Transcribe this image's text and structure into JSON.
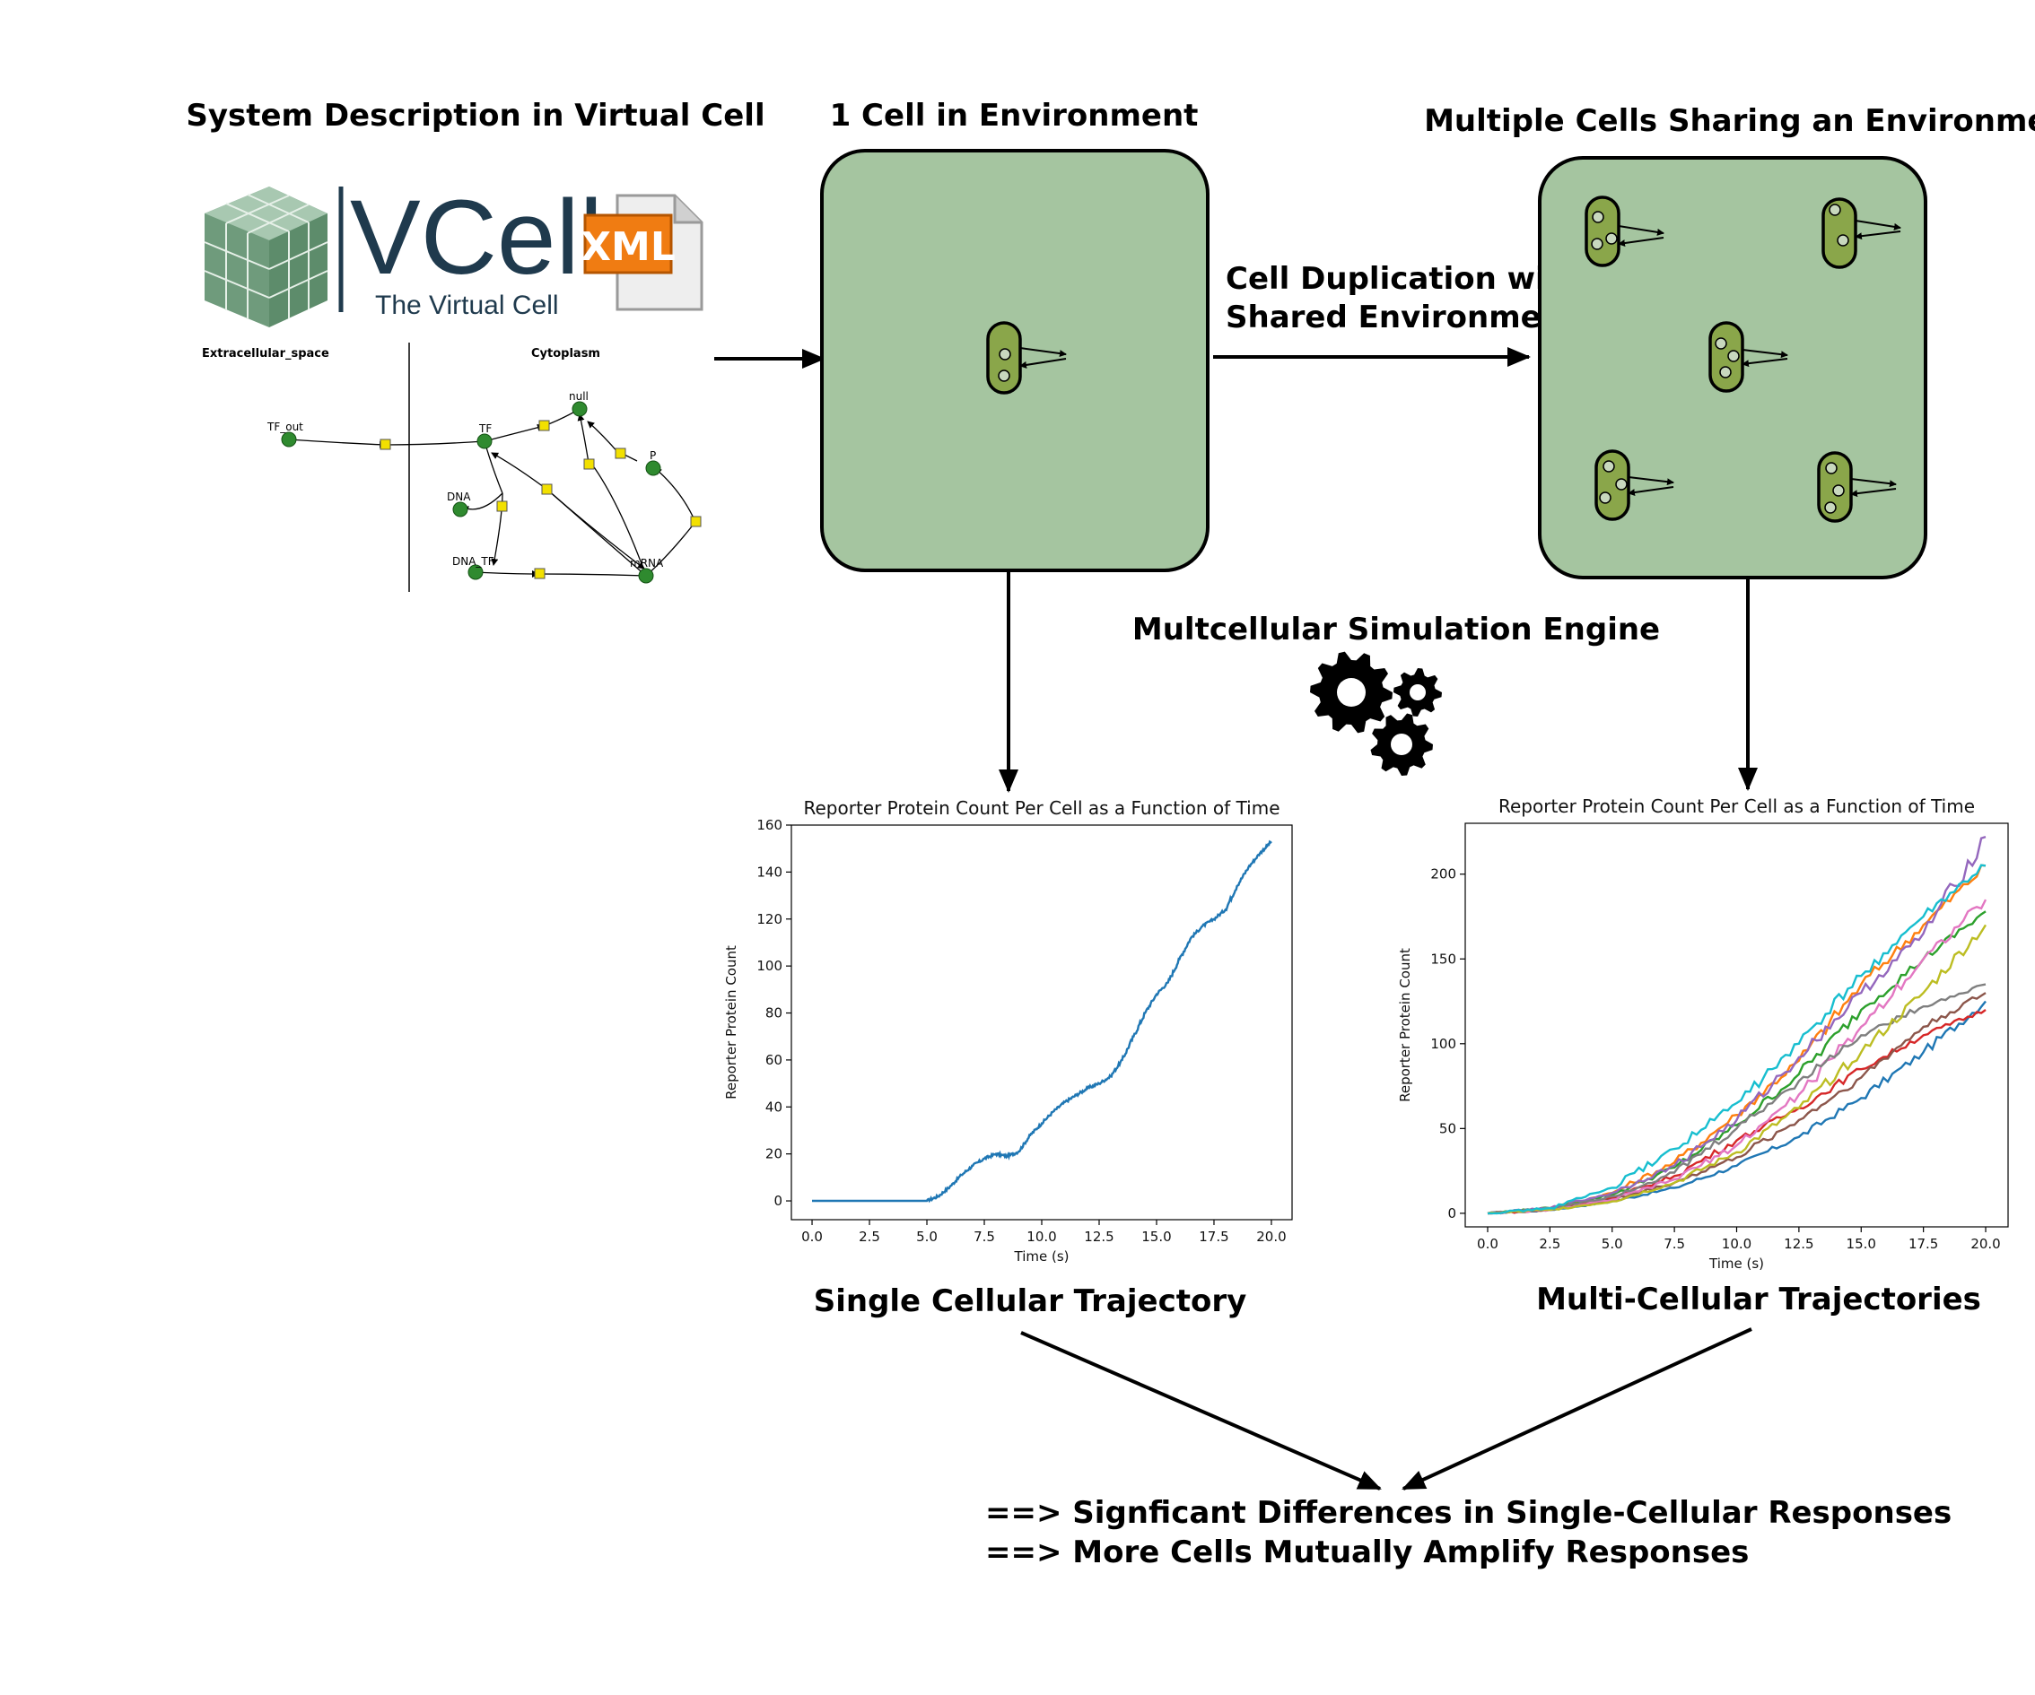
{
  "titles": {
    "system": "System Description in Virtual Cell",
    "one_cell": "1 Cell in Environment",
    "multi_cells": "Multiple Cells Sharing an Environment"
  },
  "logo": {
    "name": "VCell",
    "tagline": "The Virtual Cell",
    "file_badge": "XML"
  },
  "network": {
    "compartments": [
      "Extracellular_space",
      "Cytoplasm"
    ],
    "species": [
      "TF_out",
      "TF",
      "null",
      "P",
      "DNA",
      "DNA_TF",
      "mRNA"
    ]
  },
  "duplication_label": [
    "Cell Duplication with",
    "Shared Environment"
  ],
  "engine_label": "Multcellular Simulation Engine",
  "icons": [
    "vcell-cube-logo-icon",
    "xml-file-icon",
    "gears-icon"
  ],
  "colors": {
    "environment_fill": "#a5c5a0",
    "cell_fill": "#8aa64a",
    "node_green": "#2f8a2f",
    "reaction_yellow": "#f2e000"
  },
  "chart_data": [
    {
      "type": "line",
      "title": "Reporter Protein Count Per Cell as a Function of Time",
      "xlabel": "Time (s)",
      "ylabel": "Reporter Protein Count",
      "xlim": [
        -0.9,
        20.9
      ],
      "ylim": [
        -8,
        160
      ],
      "x_ticks": [
        "0.0",
        "2.5",
        "5.0",
        "7.5",
        "10.0",
        "12.5",
        "15.0",
        "17.5",
        "20.0"
      ],
      "y_ticks": [
        "0",
        "20",
        "40",
        "60",
        "80",
        "100",
        "120",
        "140",
        "160"
      ],
      "series": [
        {
          "color": "#1f77b4",
          "x": [
            0,
            5.0,
            5.5,
            6.0,
            6.5,
            7.0,
            7.5,
            8.0,
            8.5,
            9.0,
            9.5,
            10.0,
            10.5,
            11.0,
            11.5,
            12.0,
            12.5,
            13.0,
            13.5,
            14.0,
            14.5,
            15.0,
            15.5,
            16.0,
            16.5,
            17.0,
            17.5,
            18.0,
            18.5,
            19.0,
            19.5,
            20.0
          ],
          "y": [
            0,
            0,
            2,
            6,
            11,
            15,
            18,
            20,
            19,
            21,
            28,
            33,
            38,
            42,
            45,
            48,
            50,
            53,
            60,
            70,
            80,
            88,
            93,
            103,
            112,
            117,
            120,
            124,
            134,
            142,
            148,
            153
          ]
        }
      ],
      "caption": "Single Cellular Trajectory"
    },
    {
      "type": "line",
      "title": "Reporter Protein Count Per Cell as a Function of Time",
      "xlabel": "Time (s)",
      "ylabel": "Reporter Protein Count",
      "xlim": [
        -0.9,
        20.9
      ],
      "ylim": [
        -8,
        230
      ],
      "x_ticks": [
        "0.0",
        "2.5",
        "5.0",
        "7.5",
        "10.0",
        "12.5",
        "15.0",
        "17.5",
        "20.0"
      ],
      "y_ticks": [
        "0",
        "50",
        "100",
        "150",
        "200"
      ],
      "x": [
        0,
        2.5,
        5.0,
        7.5,
        10.0,
        12.5,
        15.0,
        17.5,
        20.0
      ],
      "series": [
        {
          "color": "#1f77b4",
          "y": [
            0,
            2,
            7,
            15,
            28,
            45,
            68,
            95,
            125
          ]
        },
        {
          "color": "#ff7f0e",
          "y": [
            0,
            3,
            12,
            30,
            58,
            90,
            135,
            170,
            205
          ]
        },
        {
          "color": "#2ca02c",
          "y": [
            0,
            3,
            11,
            27,
            52,
            82,
            120,
            150,
            178
          ]
        },
        {
          "color": "#d62728",
          "y": [
            0,
            2,
            9,
            22,
            43,
            62,
            85,
            105,
            120
          ]
        },
        {
          "color": "#9467bd",
          "y": [
            0,
            3,
            12,
            28,
            55,
            92,
            130,
            165,
            222
          ]
        },
        {
          "color": "#8c564b",
          "y": [
            0,
            2,
            8,
            18,
            33,
            55,
            80,
            110,
            130
          ]
        },
        {
          "color": "#e377c2",
          "y": [
            0,
            2,
            8,
            20,
            40,
            70,
            110,
            150,
            185
          ]
        },
        {
          "color": "#7f7f7f",
          "y": [
            0,
            3,
            10,
            24,
            50,
            78,
            105,
            122,
            135
          ]
        },
        {
          "color": "#bcbd22",
          "y": [
            0,
            2,
            7,
            18,
            36,
            62,
            95,
            130,
            170
          ]
        },
        {
          "color": "#17becf",
          "y": [
            0,
            3,
            15,
            38,
            65,
            100,
            140,
            175,
            205
          ]
        }
      ],
      "caption": "Multi-Cellular Trajectories"
    }
  ],
  "conclusions": [
    "==> Signficant Differences in Single-Cellular Responses",
    "==> More Cells Mutually Amplify Responses"
  ]
}
